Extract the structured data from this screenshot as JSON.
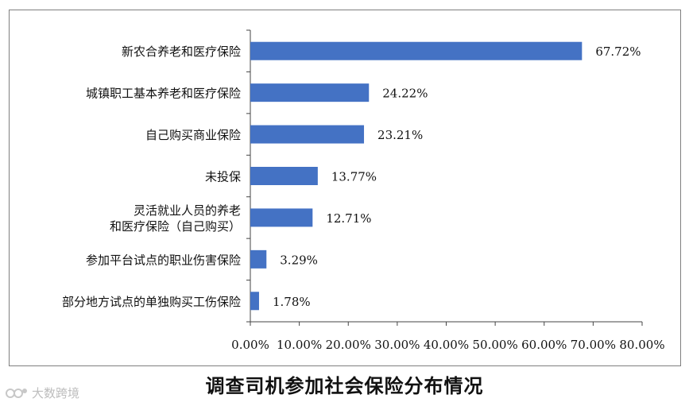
{
  "chart_data": {
    "type": "bar",
    "orientation": "horizontal",
    "categories": [
      "新农合养老和医疗保险",
      "城镇职工基本养老和医疗保险",
      "自己购买商业保险",
      "未投保",
      "灵活就业人员的养老\n和医疗保险（自己购买）",
      "参加平台试点的职业伤害保险",
      "部分地方试点的单独购买工伤保险"
    ],
    "values": [
      67.72,
      24.22,
      23.21,
      13.77,
      12.71,
      3.29,
      1.78
    ],
    "value_labels": [
      "67.72%",
      "24.22%",
      "23.21%",
      "13.77%",
      "12.71%",
      "3.29%",
      "1.78%"
    ],
    "xlim": [
      0,
      80
    ],
    "x_ticks": [
      0,
      10,
      20,
      30,
      40,
      50,
      60,
      70,
      80
    ],
    "x_tick_labels": [
      "0.00%",
      "10.00%",
      "20.00%",
      "30.00%",
      "40.00%",
      "50.00%",
      "60.00%",
      "70.00%",
      "80.00%"
    ],
    "grid": false,
    "bar_color": "#4472c4"
  },
  "caption": "调查司机参加社会保险分布情况",
  "watermark": "大数跨境"
}
